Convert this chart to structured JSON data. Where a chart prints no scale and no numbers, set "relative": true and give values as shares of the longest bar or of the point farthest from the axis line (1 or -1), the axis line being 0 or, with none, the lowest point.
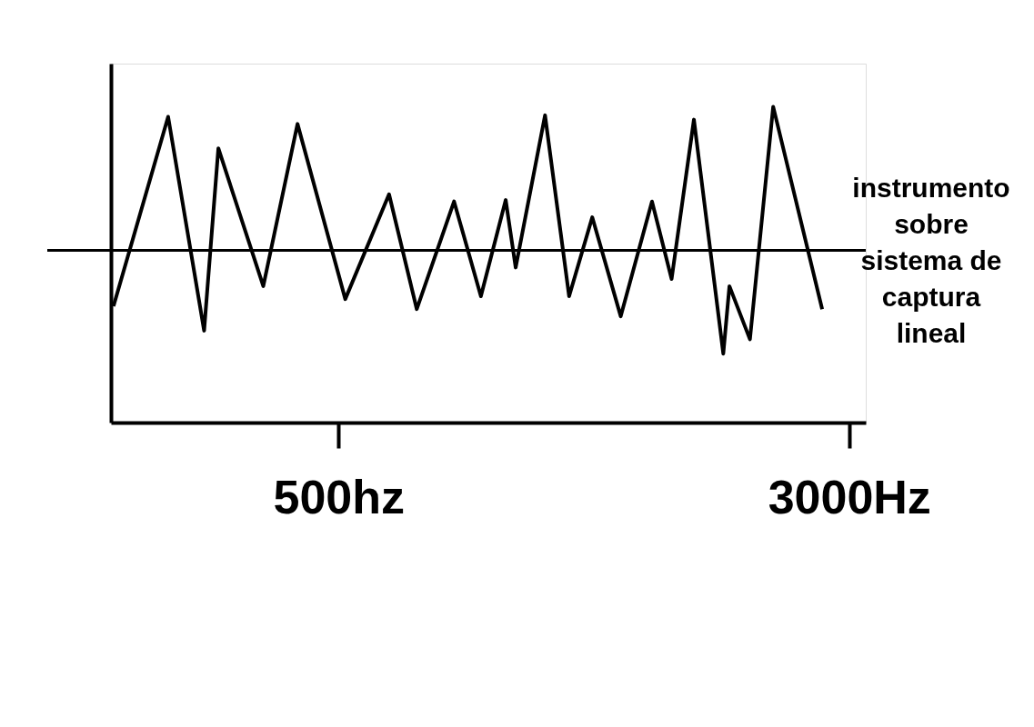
{
  "chart_data": {
    "type": "line",
    "relative": true,
    "log": "x",
    "grid": false,
    "marker": "none",
    "line_style": "solid",
    "xlim": [
      225,
      3180
    ],
    "xticks": [
      {
        "value": 500,
        "label": "500hz"
      },
      {
        "value": 3000,
        "label": "3000Hz"
      }
    ],
    "tick_labels": "x",
    "ref_lines": [
      {
        "axis": "y",
        "value": 0,
        "color": "#000000"
      }
    ],
    "series": [
      {
        "name": "instrumento sobre sistema de captura lineal",
        "color": "#000000",
        "x": [
          227,
          275,
          312,
          328,
          384,
          433,
          512,
          597,
          658,
          750,
          824,
          899,
          931,
          1032,
          1123,
          1218,
          1346,
          1502,
          1609,
          1740,
          1929,
          1971,
          2118,
          2298,
          2729
        ],
        "values": [
          -0.39,
          0.93,
          -0.56,
          0.71,
          -0.25,
          0.88,
          -0.34,
          0.39,
          -0.41,
          0.34,
          -0.32,
          0.35,
          -0.12,
          0.94,
          -0.32,
          0.23,
          -0.46,
          0.34,
          -0.2,
          0.91,
          -0.72,
          -0.25,
          -0.62,
          1,
          -0.41
        ]
      }
    ]
  }
}
